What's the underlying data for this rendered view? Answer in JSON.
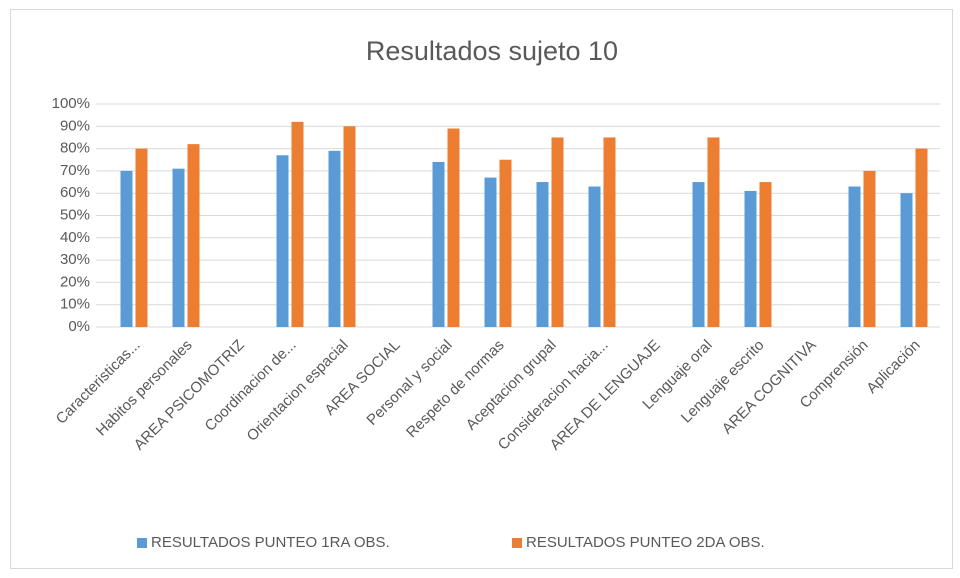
{
  "chart_data": {
    "type": "bar",
    "title": "Resultados sujeto 10",
    "categories": [
      "Caracteristicas...",
      "Habitos personales",
      "AREA PSICOMOTRIZ",
      "Coordinacion de...",
      "Orientacion espacial",
      "AREA SOCIAL",
      "Personal y social",
      "Respeto de normas",
      "Aceptacion grupal",
      "Consideracion hacia...",
      "AREA DE LENGUAJE",
      "Lenguaje oral",
      "Lenguaje escrito",
      "AREA COGNITIVA",
      "Comprensión",
      "Aplicación"
    ],
    "series": [
      {
        "name": "RESULTADOS PUNTEO 1RA OBS.",
        "color": "#5b9bd5",
        "values": [
          70,
          71,
          null,
          77,
          79,
          null,
          74,
          67,
          65,
          63,
          null,
          65,
          61,
          null,
          63,
          60
        ]
      },
      {
        "name": "RESULTADOS PUNTEO 2DA OBS.",
        "color": "#ed7d31",
        "values": [
          80,
          82,
          null,
          92,
          90,
          null,
          89,
          75,
          85,
          85,
          null,
          85,
          65,
          null,
          70,
          80
        ]
      }
    ],
    "ylim": [
      0,
      100
    ],
    "yticks": [
      {
        "value": 0,
        "label": "0%"
      },
      {
        "value": 10,
        "label": "10%"
      },
      {
        "value": 20,
        "label": "20%"
      },
      {
        "value": 30,
        "label": "30%"
      },
      {
        "value": 40,
        "label": "40%"
      },
      {
        "value": 50,
        "label": "50%"
      },
      {
        "value": 60,
        "label": "60%"
      },
      {
        "value": 70,
        "label": "70%"
      },
      {
        "value": 80,
        "label": "80%"
      },
      {
        "value": 90,
        "label": "90%"
      },
      {
        "value": 100,
        "label": "100%"
      }
    ],
    "grid": true,
    "legend": "bottom"
  }
}
